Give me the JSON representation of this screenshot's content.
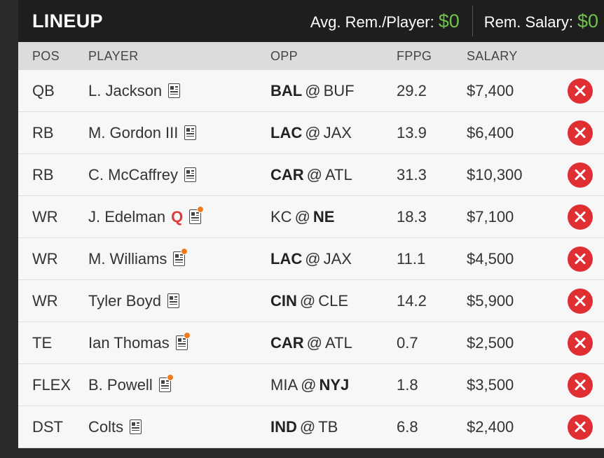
{
  "header": {
    "title": "LINEUP",
    "avg_label": "Avg. Rem./Player:",
    "avg_value": "$0",
    "rem_label": "Rem. Salary:",
    "rem_value": "$0"
  },
  "columns": {
    "pos": "POS",
    "player": "PLAYER",
    "opp": "OPP",
    "fppg": "FPPG",
    "salary": "SALARY"
  },
  "colors": {
    "accent_money": "#6cc24a",
    "remove": "#e02f33",
    "injury_q": "#e03a3a",
    "news_dot": "#f07a1c"
  },
  "rows": [
    {
      "pos": "QB",
      "player": "L. Jackson",
      "status": "",
      "news_dot": false,
      "team_a": "BAL",
      "team_b": "BUF",
      "home_bold": "a",
      "fppg": "29.2",
      "salary": "$7,400"
    },
    {
      "pos": "RB",
      "player": "M. Gordon III",
      "status": "",
      "news_dot": false,
      "team_a": "LAC",
      "team_b": "JAX",
      "home_bold": "a",
      "fppg": "13.9",
      "salary": "$6,400"
    },
    {
      "pos": "RB",
      "player": "C. McCaffrey",
      "status": "",
      "news_dot": false,
      "team_a": "CAR",
      "team_b": "ATL",
      "home_bold": "a",
      "fppg": "31.3",
      "salary": "$10,300"
    },
    {
      "pos": "WR",
      "player": "J. Edelman",
      "status": "Q",
      "news_dot": true,
      "team_a": "KC",
      "team_b": "NE",
      "home_bold": "b",
      "fppg": "18.3",
      "salary": "$7,100"
    },
    {
      "pos": "WR",
      "player": "M. Williams",
      "status": "",
      "news_dot": true,
      "team_a": "LAC",
      "team_b": "JAX",
      "home_bold": "a",
      "fppg": "11.1",
      "salary": "$4,500"
    },
    {
      "pos": "WR",
      "player": "Tyler Boyd",
      "status": "",
      "news_dot": false,
      "team_a": "CIN",
      "team_b": "CLE",
      "home_bold": "a",
      "fppg": "14.2",
      "salary": "$5,900"
    },
    {
      "pos": "TE",
      "player": "Ian Thomas",
      "status": "",
      "news_dot": true,
      "team_a": "CAR",
      "team_b": "ATL",
      "home_bold": "a",
      "fppg": "0.7",
      "salary": "$2,500"
    },
    {
      "pos": "FLEX",
      "player": "B. Powell",
      "status": "",
      "news_dot": true,
      "team_a": "MIA",
      "team_b": "NYJ",
      "home_bold": "b",
      "fppg": "1.8",
      "salary": "$3,500"
    },
    {
      "pos": "DST",
      "player": "Colts",
      "status": "",
      "news_dot": false,
      "team_a": "IND",
      "team_b": "TB",
      "home_bold": "a",
      "fppg": "6.8",
      "salary": "$2,400"
    }
  ]
}
